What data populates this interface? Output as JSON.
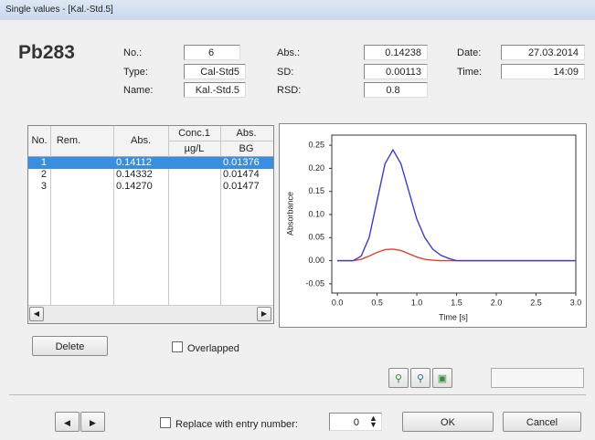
{
  "window": {
    "title": "Single values - [Kal.-Std.5]"
  },
  "sample": {
    "element": "Pb283",
    "fields": [
      {
        "label": "No.:",
        "value": "6"
      },
      {
        "label": "Type:",
        "value": "Cal-Std5"
      },
      {
        "label": "Name:",
        "value": "Kal.-Std.5"
      },
      {
        "label": "Abs.:",
        "value": "0.14238"
      },
      {
        "label": "SD:",
        "value": "0.00113"
      },
      {
        "label": "RSD:",
        "value": "0.8"
      },
      {
        "label": "Date:",
        "value": "27.03.2014"
      },
      {
        "label": "Time:",
        "value": "14:09"
      }
    ]
  },
  "table": {
    "headers": [
      "No.",
      "Rem.",
      "Abs.",
      "Conc.1",
      "µg/L",
      "Abs.",
      "BG"
    ],
    "rows": [
      {
        "no": "1",
        "abs": "0.14112",
        "bg": "0.01376"
      },
      {
        "no": "2",
        "abs": "0.14332",
        "bg": "0.01474"
      },
      {
        "no": "3",
        "abs": "0.14270",
        "bg": "0.01477"
      }
    ]
  },
  "buttons": {
    "delete": "Delete",
    "ok": "OK",
    "cancel": "Cancel"
  },
  "checkboxes": {
    "overlapped": "Overlapped",
    "replace": "Replace with entry number:"
  },
  "entry_number": "0",
  "chart_data": {
    "type": "line",
    "x_label": "Time [s]",
    "y_label": "Absorbance",
    "x": [
      0,
      0.2,
      0.3,
      0.4,
      0.5,
      0.6,
      0.7,
      0.8,
      0.9,
      1.0,
      1.1,
      1.2,
      1.3,
      1.4,
      1.5,
      2.0,
      2.5,
      3.0
    ],
    "series": [
      {
        "color": "#3c3cc8",
        "values": [
          0,
          0,
          0.01,
          0.05,
          0.13,
          0.21,
          0.24,
          0.21,
          0.15,
          0.09,
          0.05,
          0.025,
          0.012,
          0.005,
          0,
          0,
          0,
          0
        ]
      },
      {
        "color": "#e0402c",
        "values": [
          0,
          0,
          0.003,
          0.01,
          0.018,
          0.024,
          0.025,
          0.022,
          0.015,
          0.008,
          0.003,
          0.001,
          0,
          0,
          0,
          0,
          0,
          0
        ]
      }
    ],
    "xlim": [
      -0.07,
      3.0
    ],
    "xticks": [
      {
        "value": 0,
        "label": "0.0"
      },
      0.5,
      {
        "value": 1,
        "label": "1.0"
      },
      1.5,
      {
        "value": 2,
        "label": "2.0"
      },
      2.5,
      {
        "value": 3,
        "label": "3.0"
      }
    ],
    "ylim": [
      -0.07,
      0.272
    ],
    "yticks": [
      -0.05,
      {
        "value": 0,
        "label": "0.00"
      },
      0.05,
      {
        "value": 0.1,
        "label": "0.10"
      },
      0.15,
      {
        "value": 0.2,
        "label": "0.20"
      },
      0.25
    ]
  }
}
